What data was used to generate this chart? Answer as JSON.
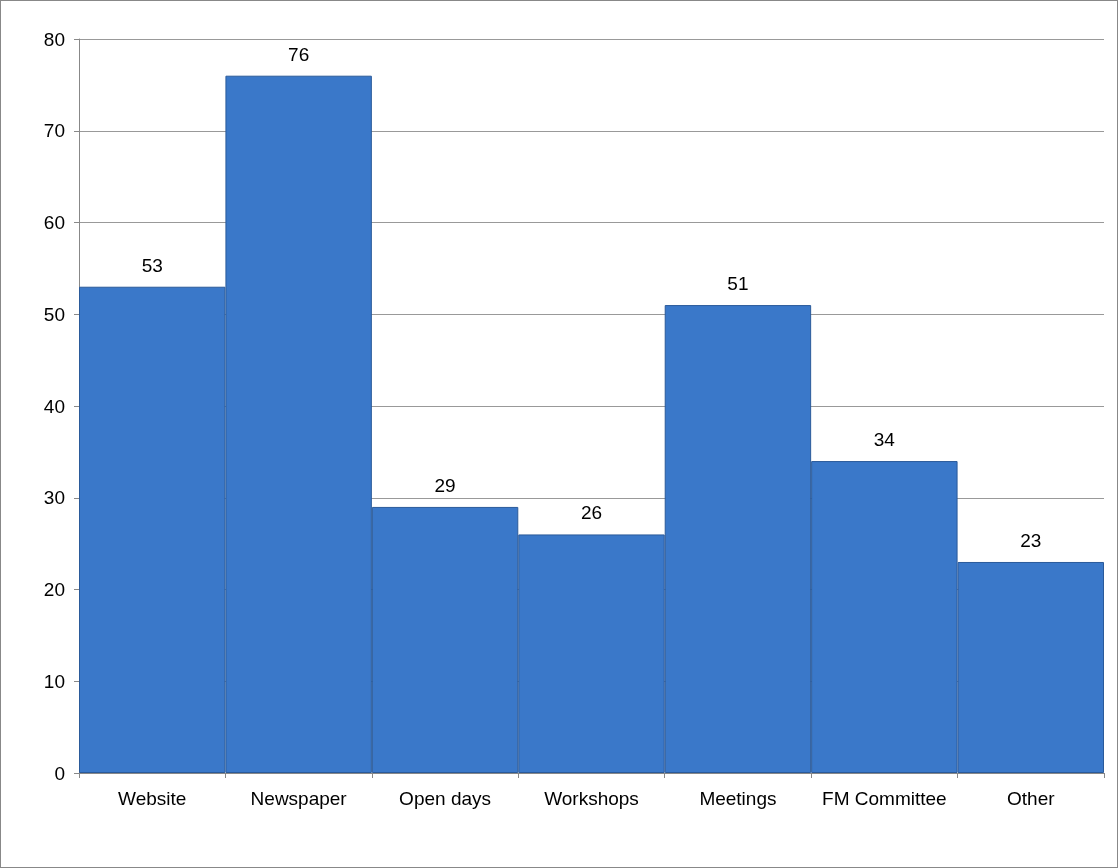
{
  "chart_data": {
    "type": "bar",
    "categories": [
      "Website",
      "Newspaper",
      "Open days",
      "Workshops",
      "Meetings",
      "FM Committee",
      "Other"
    ],
    "values": [
      53,
      76,
      29,
      26,
      51,
      34,
      23
    ],
    "color": "#3a78c9",
    "ylim": [
      0,
      80
    ],
    "yticks": [
      0,
      10,
      20,
      30,
      40,
      50,
      60,
      70,
      80
    ],
    "grid": "y",
    "data_labels": true
  }
}
